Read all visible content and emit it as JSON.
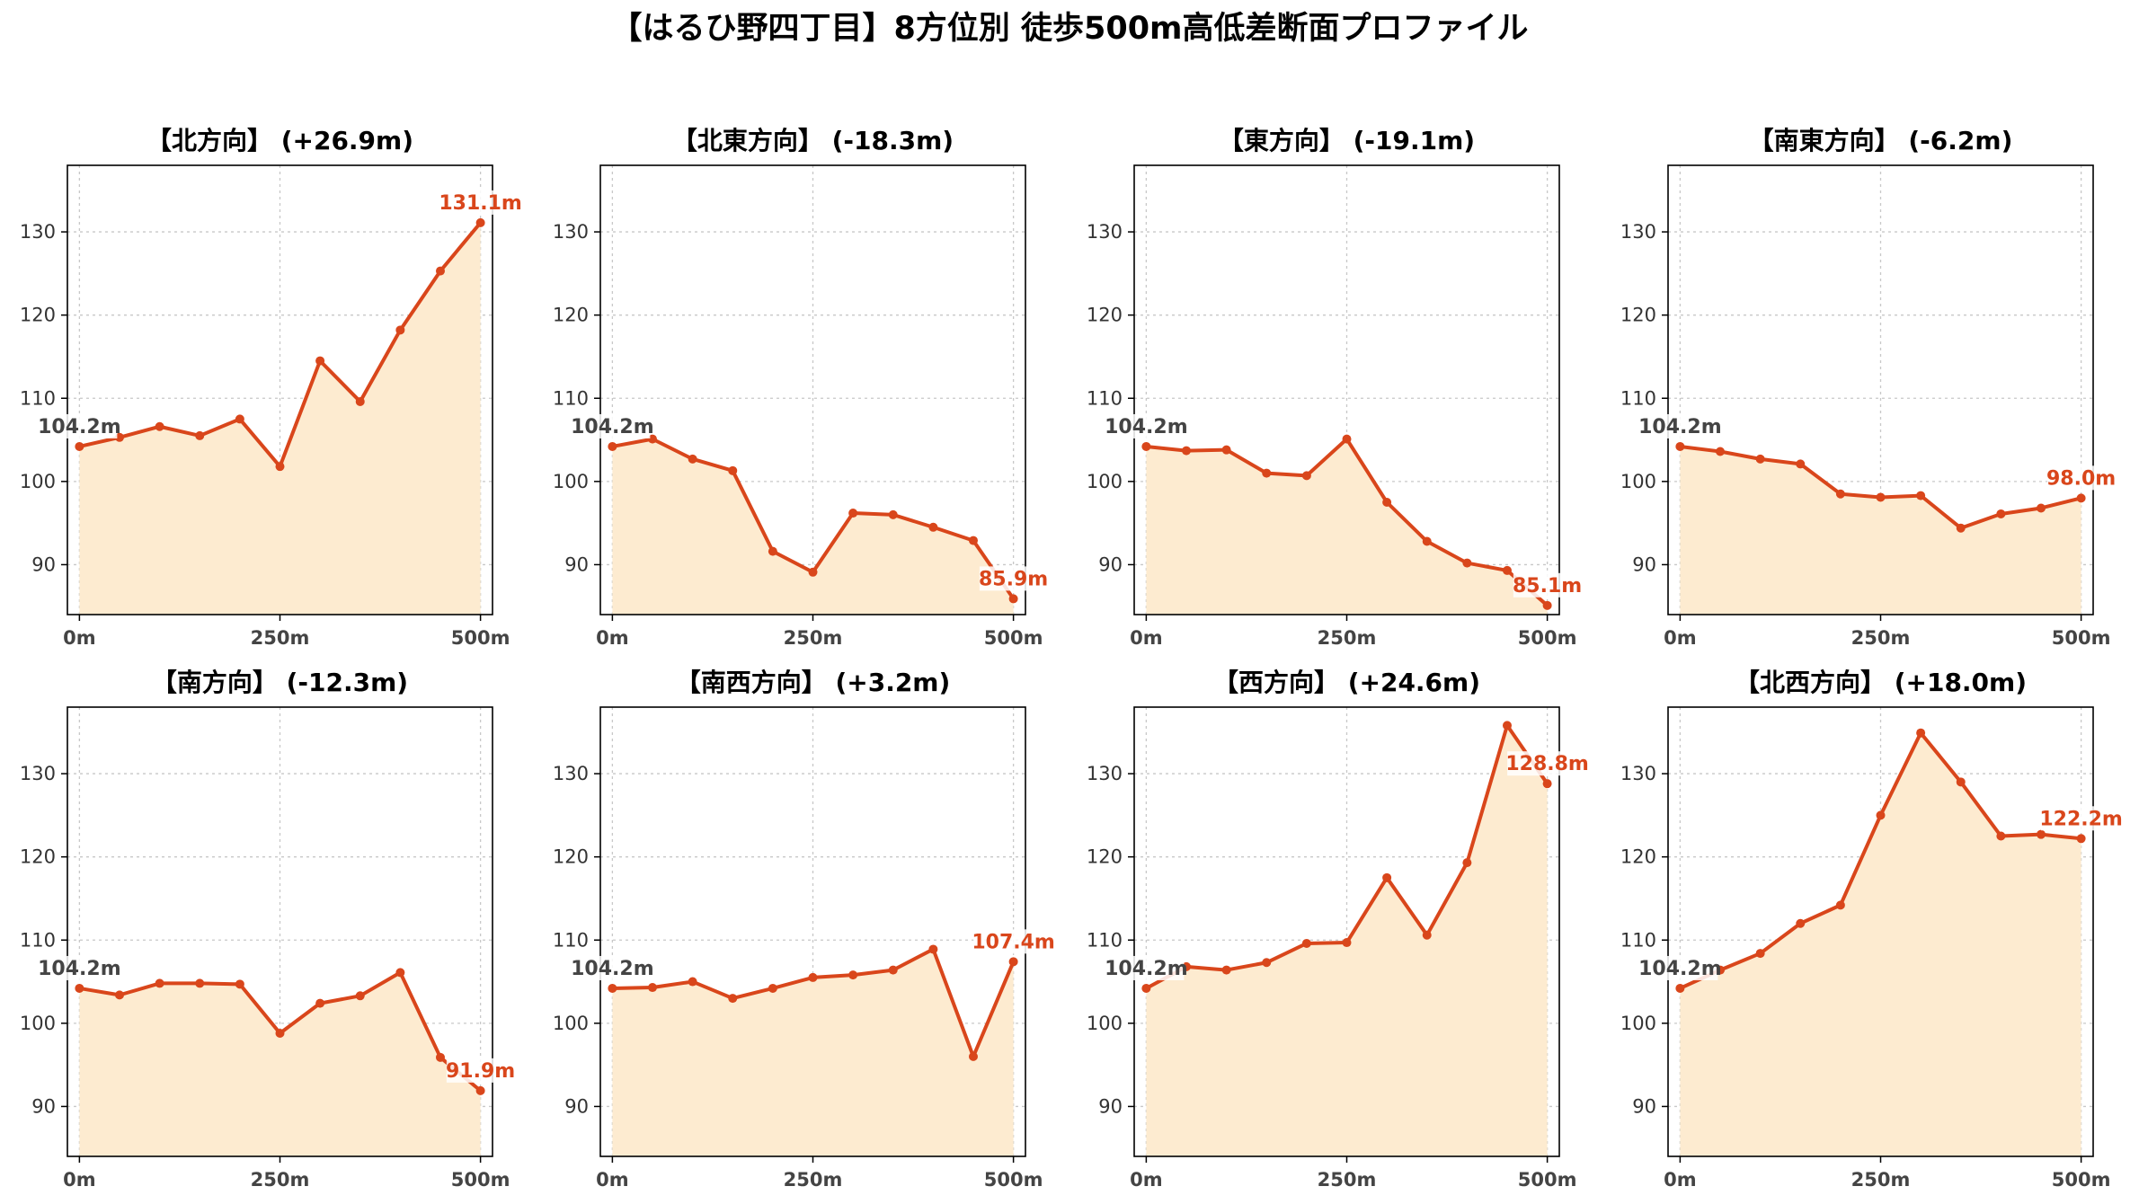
{
  "title": "【はるひ野四丁目】8方位別 徒歩500m高低差断面プロファイル",
  "colors": {
    "line": "#d9461b",
    "fill": "#fdebd0",
    "end_label": "#d9461b",
    "start_label": "#444444"
  },
  "chart_data": [
    {
      "type": "area",
      "title": "【北方向】 (+26.9m)",
      "start_label": "104.2m",
      "end_label": "131.1m",
      "x": [
        0,
        50,
        100,
        150,
        200,
        250,
        300,
        350,
        400,
        450,
        500
      ],
      "y": [
        104.2,
        105.3,
        106.6,
        105.5,
        107.5,
        101.8,
        114.5,
        109.6,
        118.2,
        125.3,
        131.1
      ],
      "xticks": [
        "0m",
        "250m",
        "500m"
      ],
      "yticks": [
        90,
        100,
        110,
        120,
        130
      ],
      "xlim": [
        -15,
        515
      ],
      "ylim": [
        84,
        138
      ],
      "grid": true
    },
    {
      "type": "area",
      "title": "【北東方向】 (-18.3m)",
      "start_label": "104.2m",
      "end_label": "85.9m",
      "x": [
        0,
        50,
        100,
        150,
        200,
        250,
        300,
        350,
        400,
        450,
        500
      ],
      "y": [
        104.2,
        105.1,
        102.7,
        101.3,
        91.6,
        89.1,
        96.2,
        96.0,
        94.5,
        92.9,
        85.9
      ],
      "xticks": [
        "0m",
        "250m",
        "500m"
      ],
      "yticks": [
        90,
        100,
        110,
        120,
        130
      ],
      "xlim": [
        -15,
        515
      ],
      "ylim": [
        84,
        138
      ],
      "grid": true
    },
    {
      "type": "area",
      "title": "【東方向】 (-19.1m)",
      "start_label": "104.2m",
      "end_label": "85.1m",
      "x": [
        0,
        50,
        100,
        150,
        200,
        250,
        300,
        350,
        400,
        450,
        500
      ],
      "y": [
        104.2,
        103.7,
        103.8,
        101.0,
        100.7,
        105.1,
        97.5,
        92.8,
        90.2,
        89.3,
        85.1
      ],
      "xticks": [
        "0m",
        "250m",
        "500m"
      ],
      "yticks": [
        90,
        100,
        110,
        120,
        130
      ],
      "xlim": [
        -15,
        515
      ],
      "ylim": [
        84,
        138
      ],
      "grid": true
    },
    {
      "type": "area",
      "title": "【南東方向】 (-6.2m)",
      "start_label": "104.2m",
      "end_label": "98.0m",
      "x": [
        0,
        50,
        100,
        150,
        200,
        250,
        300,
        350,
        400,
        450,
        500
      ],
      "y": [
        104.2,
        103.6,
        102.7,
        102.1,
        98.5,
        98.1,
        98.3,
        94.4,
        96.1,
        96.8,
        98.0
      ],
      "xticks": [
        "0m",
        "250m",
        "500m"
      ],
      "yticks": [
        90,
        100,
        110,
        120,
        130
      ],
      "xlim": [
        -15,
        515
      ],
      "ylim": [
        84,
        138
      ],
      "grid": true
    },
    {
      "type": "area",
      "title": "【南方向】 (-12.3m)",
      "start_label": "104.2m",
      "end_label": "91.9m",
      "x": [
        0,
        50,
        100,
        150,
        200,
        250,
        300,
        350,
        400,
        450,
        500
      ],
      "y": [
        104.2,
        103.4,
        104.8,
        104.8,
        104.7,
        98.8,
        102.4,
        103.3,
        106.1,
        95.9,
        91.9
      ],
      "xticks": [
        "0m",
        "250m",
        "500m"
      ],
      "yticks": [
        90,
        100,
        110,
        120,
        130
      ],
      "xlim": [
        -15,
        515
      ],
      "ylim": [
        84,
        138
      ],
      "grid": true
    },
    {
      "type": "area",
      "title": "【南西方向】 (+3.2m)",
      "start_label": "104.2m",
      "end_label": "107.4m",
      "x": [
        0,
        50,
        100,
        150,
        200,
        250,
        300,
        350,
        400,
        450,
        500
      ],
      "y": [
        104.2,
        104.3,
        105.0,
        103.0,
        104.2,
        105.5,
        105.8,
        106.4,
        108.9,
        96.0,
        107.4
      ],
      "xticks": [
        "0m",
        "250m",
        "500m"
      ],
      "yticks": [
        90,
        100,
        110,
        120,
        130
      ],
      "xlim": [
        -15,
        515
      ],
      "ylim": [
        84,
        138
      ],
      "grid": true
    },
    {
      "type": "area",
      "title": "【西方向】 (+24.6m)",
      "start_label": "104.2m",
      "end_label": "128.8m",
      "x": [
        0,
        50,
        100,
        150,
        200,
        250,
        300,
        350,
        400,
        450,
        500
      ],
      "y": [
        104.2,
        106.8,
        106.4,
        107.3,
        109.6,
        109.7,
        117.5,
        110.6,
        119.3,
        135.8,
        128.8
      ],
      "xticks": [
        "0m",
        "250m",
        "500m"
      ],
      "yticks": [
        90,
        100,
        110,
        120,
        130
      ],
      "xlim": [
        -15,
        515
      ],
      "ylim": [
        84,
        138
      ],
      "grid": true
    },
    {
      "type": "area",
      "title": "【北西方向】 (+18.0m)",
      "start_label": "104.2m",
      "end_label": "122.2m",
      "x": [
        0,
        50,
        100,
        150,
        200,
        250,
        300,
        350,
        400,
        450,
        500
      ],
      "y": [
        104.2,
        106.4,
        108.4,
        112.0,
        114.2,
        125.0,
        134.9,
        129.0,
        122.5,
        122.7,
        122.2
      ],
      "xticks": [
        "0m",
        "250m",
        "500m"
      ],
      "yticks": [
        90,
        100,
        110,
        120,
        130
      ],
      "xlim": [
        -15,
        515
      ],
      "ylim": [
        84,
        138
      ],
      "grid": true
    }
  ]
}
